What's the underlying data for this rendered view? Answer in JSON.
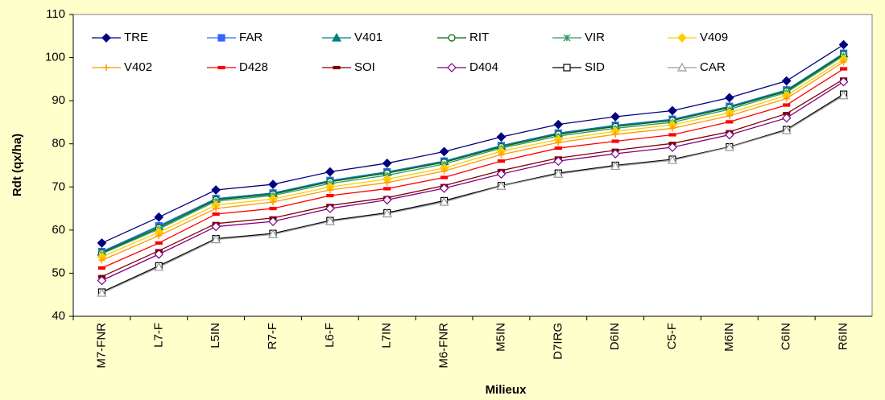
{
  "chart_data": {
    "type": "line",
    "x_label": "Milieux",
    "y_label": "Rdt (qx/ha)",
    "categories": [
      "M7-FNR",
      "L7-F",
      "L5IN",
      "R7-F",
      "L6-F",
      "L7IN",
      "M6-FNR",
      "M5IN",
      "D7IRG",
      "D6IN",
      "C5-F",
      "M6IN",
      "C6IN",
      "R6IN"
    ],
    "ylim": [
      40,
      110
    ],
    "yticks": [
      40,
      50,
      60,
      70,
      80,
      90,
      100,
      110
    ],
    "series": [
      {
        "name": "TRE",
        "color": "#000080",
        "marker": "diamond",
        "values": [
          57,
          63,
          69.3,
          70.6,
          73.5,
          75.5,
          78.2,
          81.6,
          84.5,
          86.3,
          87.7,
          90.7,
          94.6,
          103
        ]
      },
      {
        "name": "FAR",
        "color": "#3366ff",
        "marker": "square",
        "values": [
          55,
          61,
          67.3,
          68.6,
          71.5,
          73.5,
          76,
          79.6,
          82.5,
          84.3,
          85.7,
          88.7,
          92.5,
          101
        ]
      },
      {
        "name": "V401",
        "color": "#008080",
        "marker": "triangle",
        "values": [
          54.9,
          60.8,
          67.2,
          68.5,
          71.4,
          73.4,
          75.9,
          79.5,
          82.4,
          84.2,
          85.6,
          88.6,
          92.4,
          100.9
        ]
      },
      {
        "name": "RIT",
        "color": "#006600",
        "marker": "circle-open",
        "values": [
          54.7,
          60.5,
          67,
          68.3,
          71.2,
          73.2,
          75.7,
          79.3,
          82.2,
          84,
          85.4,
          88.4,
          92.2,
          100.7
        ]
      },
      {
        "name": "VIR",
        "color": "#339966",
        "marker": "star",
        "values": [
          54.5,
          60.2,
          66.7,
          68,
          70.8,
          72.7,
          75.3,
          79,
          81.8,
          83.6,
          85,
          88,
          91.9,
          100.4
        ]
      },
      {
        "name": "V409",
        "color": "#ffcc00",
        "marker": "diamond",
        "values": [
          53.8,
          59.5,
          65.8,
          67.2,
          70,
          71.8,
          74.4,
          78.3,
          81,
          82.9,
          84.4,
          87.2,
          91.2,
          99.6
        ]
      },
      {
        "name": "V402",
        "color": "#ff9900",
        "marker": "plus",
        "values": [
          53,
          58.7,
          65,
          66.5,
          69.3,
          71,
          73.7,
          77.5,
          80.3,
          82.2,
          83.6,
          86.5,
          90.5,
          99
        ]
      },
      {
        "name": "D428",
        "color": "#ff0000",
        "marker": "dash",
        "values": [
          51.2,
          57,
          63.7,
          65,
          68,
          69.6,
          72.2,
          76,
          79,
          80.6,
          82.1,
          85.1,
          89,
          97.4
        ]
      },
      {
        "name": "SOI",
        "color": "#800000",
        "marker": "dash",
        "values": [
          49.2,
          55.2,
          61.5,
          62.8,
          65.7,
          67.5,
          70.3,
          73.8,
          76.7,
          78.5,
          80.1,
          82.8,
          87,
          95
        ]
      },
      {
        "name": "D404",
        "color": "#800080",
        "marker": "diamond-open",
        "values": [
          48.3,
          54.4,
          60.8,
          62,
          65,
          67,
          69.7,
          73,
          76,
          77.7,
          79.2,
          82.1,
          86,
          94.4
        ]
      },
      {
        "name": "SID",
        "color": "#000000",
        "marker": "square-open",
        "values": [
          45.6,
          51.7,
          58,
          59.2,
          62.2,
          64,
          66.8,
          70.3,
          73.2,
          75,
          76.4,
          79.3,
          83.3,
          91.5
        ]
      },
      {
        "name": "CAR",
        "color": "#999999",
        "marker": "triangle-open",
        "values": [
          45.4,
          51.4,
          57.8,
          59,
          62,
          63.8,
          66.5,
          70.2,
          73,
          74.8,
          76.2,
          79.2,
          83.1,
          91.2
        ]
      }
    ]
  }
}
